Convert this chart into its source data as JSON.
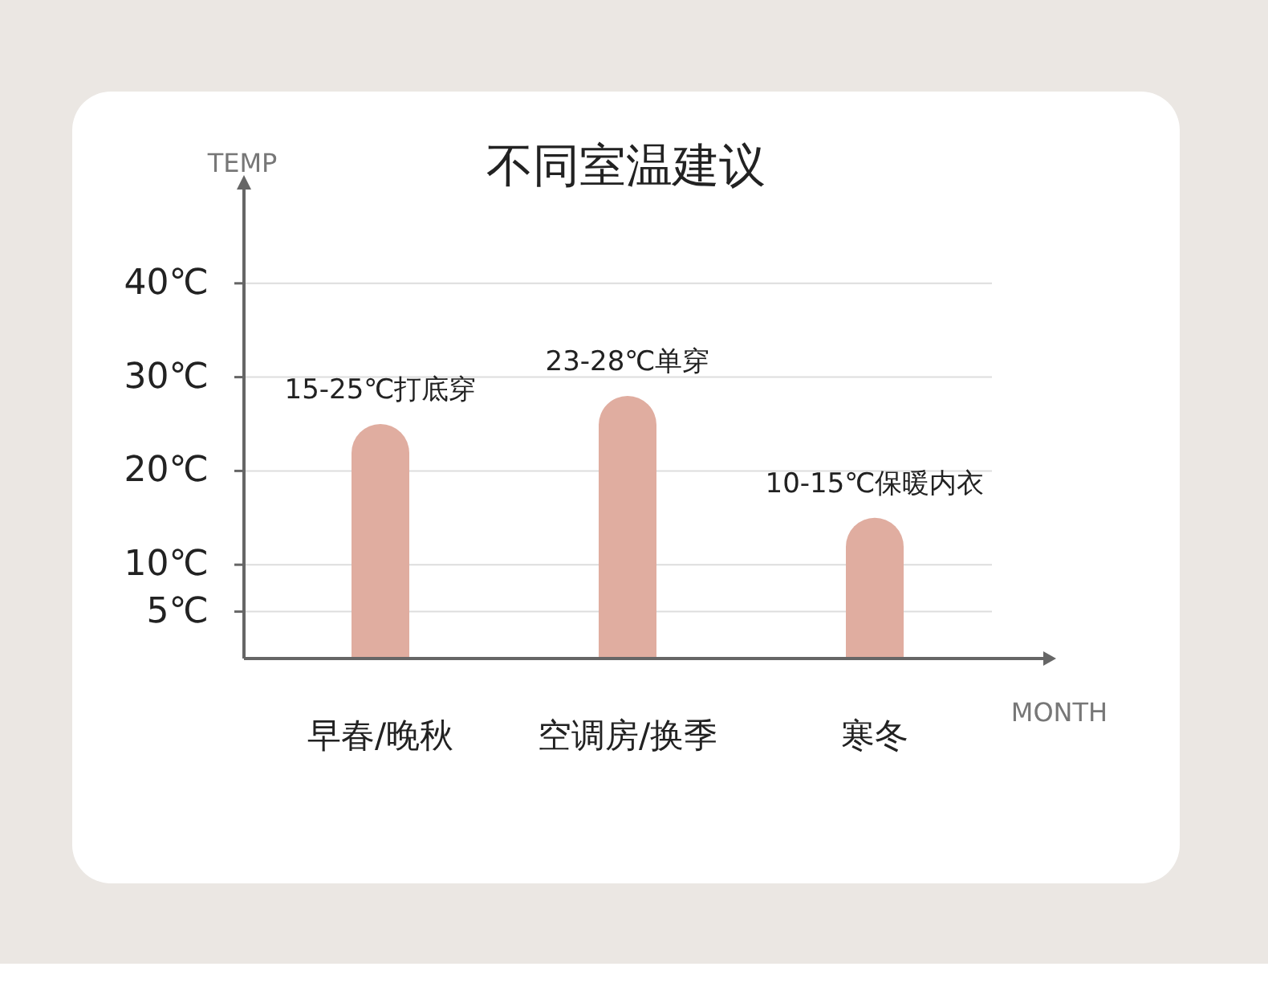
{
  "chart_data": {
    "type": "bar",
    "title": "不同室温建议",
    "ylabel": "TEMP",
    "xlabel": "MONTH",
    "categories": [
      "早春/晚秋",
      "空调房/换季",
      "寒冬"
    ],
    "values": [
      25,
      28,
      15
    ],
    "color": "#e0ada0",
    "ylim": [
      0,
      50
    ],
    "yticks": [
      {
        "value": 5,
        "label": "5℃"
      },
      {
        "value": 10,
        "label": "10℃"
      },
      {
        "value": 20,
        "label": "20℃"
      },
      {
        "value": 30,
        "label": "30℃"
      },
      {
        "value": 40,
        "label": "40℃"
      }
    ],
    "grid": "y",
    "annotations": [
      {
        "text": "15-25℃打底穿",
        "x": "早春/晚秋",
        "y": 25
      },
      {
        "text": "23-28℃单穿",
        "x": "空调房/换季",
        "y": 28
      },
      {
        "text": "10-15℃保暖内衣",
        "x": "寒冬",
        "y": 15
      }
    ]
  }
}
